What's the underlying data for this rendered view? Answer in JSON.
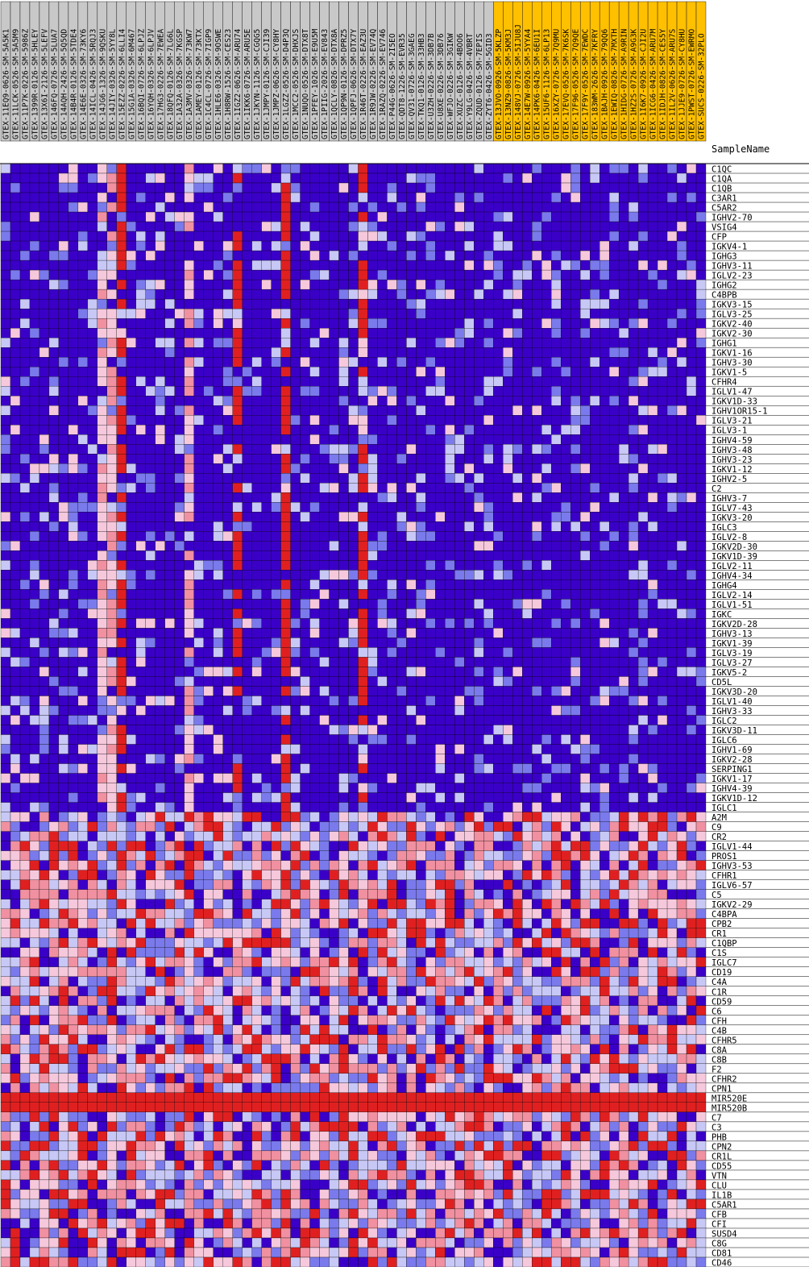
{
  "chart_data": {
    "type": "heatmap",
    "title": "",
    "row_header": "SampleName",
    "colors": {
      "normal_col_bg": "#c8c8c8",
      "tumor_col_bg": "#ffc000",
      "grid": "#000000",
      "scale": [
        "#3a00c8",
        "#7a7aec",
        "#c8c8f6",
        "#f6c8dc",
        "#f090a0",
        "#e02020"
      ]
    },
    "columns": [
      {
        "name": "GTEX-11EQ9-0626-SM-5A5K1",
        "group": "normal"
      },
      {
        "name": "GTEX-11LCK-0526-SM-5A5M9",
        "group": "normal"
      },
      {
        "name": "GTEX-11P7K-0226-SM-5986Z",
        "group": "normal"
      },
      {
        "name": "GTEX-1399R-0126-SM-5HLEY",
        "group": "normal"
      },
      {
        "name": "GTEX-13X6I-2126-SM-5LEFV",
        "group": "normal"
      },
      {
        "name": "GTEX-146FQ-0726-SM-5LUA7",
        "group": "normal"
      },
      {
        "name": "GTEX-14AQH-2426-SM-5Q5QD",
        "group": "normal"
      },
      {
        "name": "GTEX-14B4R-0126-SM-5TDE4",
        "group": "normal"
      },
      {
        "name": "GTEX-14E6E-0326-SM-73KY6",
        "group": "normal"
      },
      {
        "name": "GTEX-14ICL-0426-SM-5RQJ3",
        "group": "normal"
      },
      {
        "name": "GTEX-14JG6-1326-SM-9QSKU",
        "group": "normal"
      },
      {
        "name": "GTEX-14JIY-0326-SM-5YY8L",
        "group": "normal"
      },
      {
        "name": "GTEX-15EZZ-0226-SM-6LLI4",
        "group": "normal"
      },
      {
        "name": "GTEX-15G1A-0326-SM-6M467",
        "group": "normal"
      },
      {
        "name": "GTEX-16BQI-0726-SM-6LPJZ",
        "group": "normal"
      },
      {
        "name": "GTEX-16YQH-0326-SM-6LPJV",
        "group": "normal"
      },
      {
        "name": "GTEX-17HG3-0226-SM-7EWEA",
        "group": "normal"
      },
      {
        "name": "GTEX-18QFQ-0126-SM-7LG6L",
        "group": "normal"
      },
      {
        "name": "GTEX-1A32A-0326-SM-7KGSP",
        "group": "normal"
      },
      {
        "name": "GTEX-1A3MV-0326-SM-73KW7",
        "group": "normal"
      },
      {
        "name": "GTEX-1AMEY-0126-SM-73KTX",
        "group": "normal"
      },
      {
        "name": "GTEX-1C4CL-0726-SM-7IGP9",
        "group": "normal"
      },
      {
        "name": "GTEX-1HLE6-0326-SM-9OSWE",
        "group": "normal"
      },
      {
        "name": "GTEX-1H8RW-1526-SM-CES23",
        "group": "normal"
      },
      {
        "name": "GTEX-1IGZ2-0626-SM-ARU74",
        "group": "normal"
      },
      {
        "name": "GTEX-1IKK6-0726-SM-ARU5E",
        "group": "normal"
      },
      {
        "name": "GTEX-1JKYN-1126-SM-CGQG5",
        "group": "normal"
      },
      {
        "name": "GTEX-1JMPY-0126-SM-CJI39",
        "group": "normal"
      },
      {
        "name": "GTEX-1JMPZ-0626-SM-CY8HY",
        "group": "normal"
      },
      {
        "name": "GTEX-1LGZZ-0526-SM-D4P3Q",
        "group": "normal"
      },
      {
        "name": "GTEX-1MCC2-0526-SM-DHXJS",
        "group": "normal"
      },
      {
        "name": "GTEX-1NUQO-0526-SM-DTX8T",
        "group": "normal"
      },
      {
        "name": "GTEX-1PFEY-1026-SM-E9U5M",
        "group": "normal"
      },
      {
        "name": "GTEX-1PIIG-2026-SM-EV843",
        "group": "normal"
      },
      {
        "name": "GTEX-1QCLY-0826-SM-DTX8A",
        "group": "normal"
      },
      {
        "name": "GTEX-1QP9N-0126-SM-DPRZ5",
        "group": "normal"
      },
      {
        "name": "GTEX-1QPFJ-0626-SM-DTX7Y",
        "group": "normal"
      },
      {
        "name": "GTEX-1R46T-0226-SM-EAZ3U",
        "group": "normal"
      },
      {
        "name": "GTEX-1R9JW-0226-SM-EV74Q",
        "group": "normal"
      },
      {
        "name": "GTEX-1RAZQ-0226-SM-EV746",
        "group": "normal"
      },
      {
        "name": "GTEX-P44G-0626-SM-2I5EO",
        "group": "normal"
      },
      {
        "name": "GTEX-QDT8-1226-SM-EVR35",
        "group": "normal"
      },
      {
        "name": "GTEX-QV31-0726-SM-3GAEG",
        "group": "normal"
      },
      {
        "name": "GTEX-TKQ1-0126-SM-33HB3",
        "group": "normal"
      },
      {
        "name": "GTEX-U3ZH-0226-SM-3DB7B",
        "group": "normal"
      },
      {
        "name": "GTEX-U8XE-0226-SM-3DB76",
        "group": "normal"
      },
      {
        "name": "GTEX-WFJO-0226-SM-3GIKW",
        "group": "normal"
      },
      {
        "name": "GTEX-XUZC-0126-SM-4BOO6",
        "group": "normal"
      },
      {
        "name": "GTEX-Y9LG-0426-SM-4VBRT",
        "group": "normal"
      },
      {
        "name": "GTEX-ZQUD-0126-SM-7EPIS",
        "group": "normal"
      },
      {
        "name": "GTEX-ZYT6-0426-SM-5GID3",
        "group": "normal"
      },
      {
        "name": "GTEX-13JVO-0926-SM-5KLZP",
        "group": "tumor"
      },
      {
        "name": "GTEX-13NZ9-0826-SM-5KM3J",
        "group": "tumor"
      },
      {
        "name": "GTEX-148VJ-0726-SM-5IJU8J",
        "group": "tumor"
      },
      {
        "name": "GTEX-14E7W-0926-SM-5YYA4",
        "group": "tumor"
      },
      {
        "name": "GTEX-14PK6-0426-SM-6EU1I",
        "group": "tumor"
      },
      {
        "name": "GTEX-15UF6-1126-SM-6LP13",
        "group": "tumor"
      },
      {
        "name": "GTEX-16XZY-0726-SM-7Q9MU",
        "group": "tumor"
      },
      {
        "name": "GTEX-17EVQ-0526-SM-7K6SK",
        "group": "tumor"
      },
      {
        "name": "GTEX-17F96-0526-SM-7Q9QE",
        "group": "tumor"
      },
      {
        "name": "GTEX-17F9Y-0526-SM-7EWDC",
        "group": "tumor"
      },
      {
        "name": "GTEX-183WM-2626-SM-7KFRY",
        "group": "tumor"
      },
      {
        "name": "GTEX-1BAJH-0926-SM-79QQ6",
        "group": "tumor"
      },
      {
        "name": "GTEX-1EWIQ-0826-SM-7MXTH",
        "group": "tumor"
      },
      {
        "name": "GTEX-1HIDG-0726-SM-A9RIN",
        "group": "tumor"
      },
      {
        "name": "GTEX-1HZ2S-0726-SM-A9G3K",
        "group": "tumor"
      },
      {
        "name": "GTEX-1I6K7-0926-SM-CJI2U",
        "group": "tumor"
      },
      {
        "name": "GTEX-1ICG6-0426-SM-ARU7M",
        "group": "tumor"
      },
      {
        "name": "GTEX-1IDJH-0826-SM-CES5Y",
        "group": "tumor"
      },
      {
        "name": "GTEX-1IL2V-0626-SM-ARU7S",
        "group": "tumor"
      },
      {
        "name": "GTEX-1JJE9-0726-SM-CY8HU",
        "group": "tumor"
      },
      {
        "name": "GTEX-1PWST-0726-SM-EWRMO",
        "group": "tumor"
      },
      {
        "name": "GTEX-SUCS-0226-SM-32PLO",
        "group": "tumor"
      }
    ],
    "rows": [
      "C1QC",
      "C1QA",
      "C1QB",
      "C3AR1",
      "C5AR2",
      "IGHV2-70",
      "VSIG4",
      "CFP",
      "IGKV4-1",
      "IGHG3",
      "IGHV3-11",
      "IGLV2-23",
      "IGHG2",
      "C4BPB",
      "IGKV3-15",
      "IGLV3-25",
      "IGKV2-40",
      "IGKV2-30",
      "IGHG1",
      "IGKV1-16",
      "IGHV3-30",
      "IGKV1-5",
      "CFHR4",
      "IGLV1-47",
      "IGKV1D-33",
      "IGHV1OR15-1",
      "IGLV3-21",
      "IGLV3-1",
      "IGHV4-59",
      "IGHV3-48",
      "IGHV3-23",
      "IGKV1-12",
      "IGHV2-5",
      "C2",
      "IGHV3-7",
      "IGLV7-43",
      "IGKV3-20",
      "IGLC3",
      "IGLV2-8",
      "IGKV2D-30",
      "IGKV1D-39",
      "IGLV2-11",
      "IGHV4-34",
      "IGHG4",
      "IGLV2-14",
      "IGLV1-51",
      "IGKC",
      "IGKV2D-28",
      "IGHV3-13",
      "IGKV1-39",
      "IGLV3-19",
      "IGLV3-27",
      "IGKV5-2",
      "CD5L",
      "IGKV3D-20",
      "IGLV1-40",
      "IGHV3-33",
      "IGLC2",
      "IGKV3D-11",
      "IGLC6",
      "IGHV1-69",
      "IGKV2-28",
      "SERPING1",
      "IGKV1-17",
      "IGHV4-39",
      "IGKV1D-12",
      "IGLC1",
      "A2M",
      "C9",
      "CR2",
      "IGLV1-44",
      "PROS1",
      "IGHV3-53",
      "CFHR1",
      "IGLV6-57",
      "C5",
      "IGKV2-29",
      "C4BPA",
      "CPB2",
      "CR1",
      "C1QBP",
      "C1S",
      "IGLC7",
      "CD19",
      "C4A",
      "C1R",
      "CD59",
      "C6",
      "CFH",
      "C4B",
      "CFHR5",
      "C8A",
      "C8B",
      "F2",
      "CFHR2",
      "CPN1",
      "MIR520E",
      "MIR520B",
      "C7",
      "C3",
      "PHB",
      "CPN2",
      "CR1L",
      "CD55",
      "VTN",
      "CLU",
      "IL1B",
      "C5AR1",
      "CFB",
      "CFI",
      "SUSD4",
      "C8G",
      "CD81",
      "CD46"
    ]
  }
}
